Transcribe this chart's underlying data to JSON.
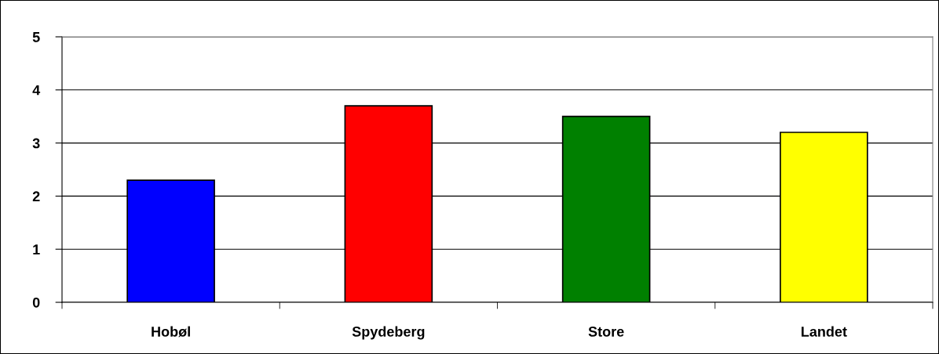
{
  "chart_data": {
    "type": "bar",
    "categories": [
      "Hobøl",
      "Spydeberg",
      "Store",
      "Landet"
    ],
    "values": [
      2.3,
      3.7,
      3.5,
      3.2
    ],
    "colors": [
      "#0000ff",
      "#ff0000",
      "#008000",
      "#ffff00"
    ],
    "ylim": [
      0,
      5
    ],
    "yticks": [
      0,
      1,
      2,
      3,
      4,
      5
    ],
    "grid": "y",
    "legend": false
  }
}
